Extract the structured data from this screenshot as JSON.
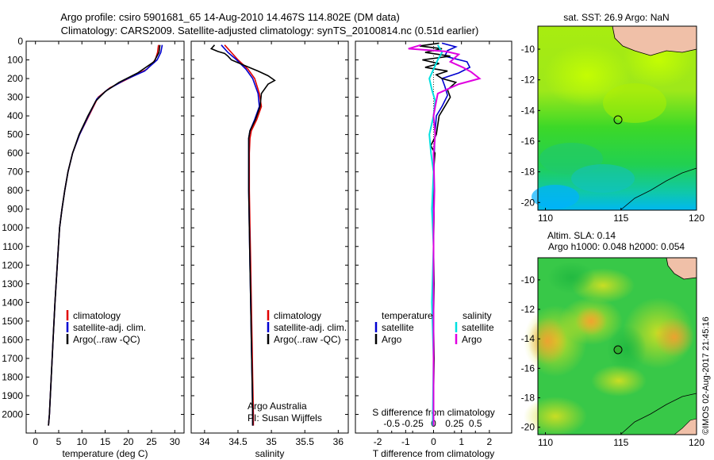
{
  "title": {
    "line1": "Argo profile: csiro 5901681_65 14-Aug-2010 14.467S 114.802E (DM data)",
    "line2": "Climatology: CARS2009. Satellite-adjusted climatology: synTS_20100814.nc (0.51d earlier)"
  },
  "colors": {
    "climatology": "#e00000",
    "satellite": "#0000d0",
    "argo": "#000000",
    "sat_salinity": "#00e0e0",
    "argo_salinity": "#e000e0"
  },
  "chart_data": [
    {
      "type": "line",
      "id": "temperature",
      "xlabel": "temperature (deg C)",
      "ylabel": "",
      "xlim": [
        -2,
        32
      ],
      "ylim": [
        2100,
        0
      ],
      "xticks": [
        "0",
        "5",
        "10",
        "15",
        "20",
        "25",
        "30"
      ],
      "xtick_values": [
        0,
        5,
        10,
        15,
        20,
        25,
        30
      ],
      "yticks": [
        "0",
        "100",
        "200",
        "300",
        "400",
        "500",
        "600",
        "700",
        "800",
        "900",
        "1000",
        "1100",
        "1200",
        "1300",
        "1400",
        "1500",
        "1600",
        "1700",
        "1800",
        "1900",
        "2000"
      ],
      "ytick_values": [
        0,
        100,
        200,
        300,
        400,
        500,
        600,
        700,
        800,
        900,
        1000,
        1100,
        1200,
        1300,
        1400,
        1500,
        1600,
        1700,
        1800,
        1900,
        2000
      ],
      "legend": [
        "climatology",
        "satellite-adj. clim.",
        "Argo(..raw -QC)"
      ],
      "series": [
        {
          "name": "climatology",
          "color_key": "climatology",
          "points": [
            [
              26.5,
              20
            ],
            [
              26.3,
              60
            ],
            [
              25.8,
              100
            ],
            [
              24,
              150
            ],
            [
              20,
              200
            ],
            [
              16,
              250
            ],
            [
              13.5,
              300
            ],
            [
              11.5,
              400
            ],
            [
              9.5,
              500
            ],
            [
              8,
              600
            ],
            [
              7,
              700
            ],
            [
              6.3,
              800
            ],
            [
              5.7,
              900
            ],
            [
              5.2,
              1000
            ],
            [
              4.7,
              1200
            ],
            [
              4.2,
              1400
            ],
            [
              3.8,
              1600
            ],
            [
              3.4,
              1800
            ],
            [
              3,
              2000
            ],
            [
              2.8,
              2060
            ]
          ]
        },
        {
          "name": "satellite-adj. clim.",
          "color_key": "satellite",
          "points": [
            [
              27.3,
              20
            ],
            [
              27,
              60
            ],
            [
              26.2,
              100
            ],
            [
              23.5,
              160
            ],
            [
              19,
              210
            ],
            [
              15.5,
              260
            ],
            [
              13.2,
              310
            ],
            [
              11.4,
              400
            ],
            [
              9.5,
              500
            ],
            [
              8,
              600
            ],
            [
              7,
              700
            ],
            [
              6.3,
              800
            ],
            [
              5.7,
              900
            ],
            [
              5.2,
              1000
            ],
            [
              4.7,
              1200
            ],
            [
              4.2,
              1400
            ],
            [
              3.8,
              1600
            ],
            [
              3.4,
              1800
            ],
            [
              3,
              2000
            ],
            [
              2.8,
              2060
            ]
          ]
        },
        {
          "name": "Argo(..raw -QC)",
          "color_key": "argo",
          "points": [
            [
              26.8,
              20
            ],
            [
              26.6,
              60
            ],
            [
              25.5,
              110
            ],
            [
              22,
              170
            ],
            [
              18,
              220
            ],
            [
              15,
              270
            ],
            [
              13,
              320
            ],
            [
              11.3,
              400
            ],
            [
              9.4,
              500
            ],
            [
              8,
              600
            ],
            [
              7,
              700
            ],
            [
              6.3,
              800
            ],
            [
              5.7,
              900
            ],
            [
              5.2,
              1000
            ],
            [
              4.7,
              1200
            ],
            [
              4.2,
              1400
            ],
            [
              3.8,
              1600
            ],
            [
              3.4,
              1800
            ],
            [
              3,
              2000
            ],
            [
              2.8,
              2060
            ]
          ]
        }
      ]
    },
    {
      "type": "line",
      "id": "salinity",
      "xlabel": "salinity",
      "xlim": [
        33.8,
        36.15
      ],
      "ylim": [
        2100,
        0
      ],
      "xticks": [
        "34",
        "34.5",
        "35",
        "35.5",
        "36"
      ],
      "xtick_values": [
        34,
        34.5,
        35,
        35.5,
        36
      ],
      "legend": [
        "climatology",
        "satellite-adj. clim.",
        "Argo(..raw -QC)"
      ],
      "annotations": [
        "Argo Australia",
        "PI: Susan Wijffels"
      ],
      "series": [
        {
          "name": "climatology",
          "color_key": "climatology",
          "points": [
            [
              34.3,
              20
            ],
            [
              34.4,
              60
            ],
            [
              34.5,
              100
            ],
            [
              34.65,
              150
            ],
            [
              34.75,
              200
            ],
            [
              34.82,
              280
            ],
            [
              34.85,
              350
            ],
            [
              34.78,
              420
            ],
            [
              34.7,
              480
            ],
            [
              34.68,
              520
            ],
            [
              34.67,
              600
            ],
            [
              34.67,
              800
            ],
            [
              34.68,
              1000
            ],
            [
              34.69,
              1200
            ],
            [
              34.7,
              1400
            ],
            [
              34.71,
              1600
            ],
            [
              34.72,
              1800
            ],
            [
              34.73,
              2000
            ],
            [
              34.73,
              2060
            ]
          ]
        },
        {
          "name": "satellite-adj. clim.",
          "color_key": "satellite",
          "points": [
            [
              34.25,
              20
            ],
            [
              34.35,
              60
            ],
            [
              34.48,
              100
            ],
            [
              34.62,
              150
            ],
            [
              34.72,
              200
            ],
            [
              34.8,
              280
            ],
            [
              34.82,
              350
            ],
            [
              34.75,
              420
            ],
            [
              34.68,
              480
            ],
            [
              34.66,
              520
            ],
            [
              34.66,
              600
            ],
            [
              34.66,
              800
            ],
            [
              34.67,
              1000
            ],
            [
              34.68,
              1200
            ],
            [
              34.69,
              1400
            ],
            [
              34.7,
              1600
            ],
            [
              34.71,
              1800
            ],
            [
              34.72,
              2000
            ],
            [
              34.72,
              2060
            ]
          ]
        },
        {
          "name": "Argo(..raw -QC)",
          "color_key": "argo",
          "points": [
            [
              34.15,
              20
            ],
            [
              34.1,
              40
            ],
            [
              34.2,
              55
            ],
            [
              34.3,
              65
            ],
            [
              34.35,
              80
            ],
            [
              34.4,
              100
            ],
            [
              34.6,
              130
            ],
            [
              34.8,
              160
            ],
            [
              34.95,
              185
            ],
            [
              35.05,
              210
            ],
            [
              34.95,
              230
            ],
            [
              34.85,
              280
            ],
            [
              34.83,
              350
            ],
            [
              34.76,
              420
            ],
            [
              34.68,
              480
            ],
            [
              34.66,
              520
            ],
            [
              34.66,
              600
            ],
            [
              34.66,
              800
            ],
            [
              34.67,
              1000
            ],
            [
              34.68,
              1200
            ],
            [
              34.69,
              1400
            ],
            [
              34.7,
              1600
            ],
            [
              34.71,
              1800
            ],
            [
              34.72,
              2000
            ],
            [
              34.72,
              2060
            ]
          ]
        }
      ]
    },
    {
      "type": "line",
      "id": "difference",
      "xlabel": "T difference from climatology",
      "xlabel_top": "S difference from climatology",
      "xlim": [
        -2.8,
        2.8
      ],
      "ylim": [
        2100,
        0
      ],
      "xticks": [
        "-2",
        "-1",
        "0",
        "1",
        "2"
      ],
      "xtick_values": [
        -2,
        -1,
        0,
        1,
        2
      ],
      "sticks": [
        "-0.5",
        "-0.25",
        "0",
        "0.25",
        "0.5"
      ],
      "stick_values": [
        -0.5,
        -0.25,
        0,
        0.25,
        0.5
      ],
      "legend_temperature_title": "temperature",
      "legend_salinity_title": "salinity",
      "legend_temperature": [
        "satellite",
        "Argo"
      ],
      "legend_salinity": [
        "satellite",
        "Argo"
      ],
      "series": [
        {
          "name": "T satellite",
          "color_key": "satellite",
          "points": [
            [
              0.3,
              10
            ],
            [
              0.8,
              30
            ],
            [
              0.5,
              50
            ],
            [
              0.4,
              80
            ],
            [
              1.2,
              110
            ],
            [
              1.3,
              140
            ],
            [
              0.9,
              170
            ],
            [
              0.3,
              200
            ],
            [
              0.4,
              240
            ],
            [
              0.5,
              290
            ],
            [
              0.3,
              350
            ],
            [
              0.1,
              400
            ],
            [
              0.05,
              500
            ],
            [
              0,
              700
            ],
            [
              0,
              1000
            ],
            [
              0,
              1500
            ],
            [
              0,
              2060
            ]
          ]
        },
        {
          "name": "T Argo",
          "color_key": "argo",
          "points": [
            [
              0.2,
              10
            ],
            [
              -0.5,
              25
            ],
            [
              0.3,
              40
            ],
            [
              -0.3,
              60
            ],
            [
              0.6,
              80
            ],
            [
              -0.4,
              100
            ],
            [
              0.2,
              120
            ],
            [
              -0.3,
              140
            ],
            [
              0.5,
              160
            ],
            [
              0.1,
              180
            ],
            [
              0.3,
              200
            ],
            [
              0.8,
              220
            ],
            [
              0.5,
              260
            ],
            [
              0.6,
              300
            ],
            [
              0.4,
              350
            ],
            [
              0.2,
              400
            ],
            [
              0.1,
              500
            ],
            [
              -0.1,
              560
            ],
            [
              0.05,
              600
            ],
            [
              0,
              700
            ],
            [
              0.02,
              900
            ],
            [
              0,
              1100
            ],
            [
              0.02,
              1300
            ],
            [
              0,
              1500
            ],
            [
              0.02,
              1700
            ],
            [
              0,
              1900
            ],
            [
              0,
              2060
            ]
          ]
        },
        {
          "name": "S satellite",
          "color_key": "sat_salinity",
          "points": [
            [
              0.05,
              20
            ],
            [
              0.1,
              60
            ],
            [
              0.05,
              100
            ],
            [
              0,
              150
            ],
            [
              -0.05,
              200
            ],
            [
              -0.02,
              260
            ],
            [
              0.02,
              320
            ],
            [
              0,
              400
            ],
            [
              -0.05,
              500
            ],
            [
              -0.03,
              600
            ],
            [
              0,
              700
            ],
            [
              -0.02,
              900
            ],
            [
              0,
              1100
            ],
            [
              -0.02,
              1400
            ],
            [
              0,
              1700
            ],
            [
              -0.01,
              2060
            ]
          ]
        },
        {
          "name": "S Argo",
          "color_key": "argo_salinity",
          "points": [
            [
              -0.15,
              20
            ],
            [
              -0.3,
              40
            ],
            [
              0.15,
              55
            ],
            [
              0.3,
              70
            ],
            [
              0.25,
              90
            ],
            [
              0.2,
              110
            ],
            [
              0.35,
              140
            ],
            [
              0.45,
              165
            ],
            [
              0.55,
              200
            ],
            [
              0.3,
              230
            ],
            [
              0.05,
              280
            ],
            [
              0.02,
              350
            ],
            [
              0,
              400
            ],
            [
              0.02,
              500
            ],
            [
              0,
              600
            ],
            [
              0.01,
              800
            ],
            [
              0,
              1000
            ],
            [
              0,
              1400
            ],
            [
              0,
              1800
            ],
            [
              0,
              2060
            ]
          ]
        }
      ]
    },
    {
      "type": "heatmap",
      "id": "sst_map",
      "title": "sat. SST: 26.9  Argo: NaN",
      "xlim": [
        109.5,
        120
      ],
      "ylim": [
        -20.5,
        -8.5
      ],
      "xticks": [
        "110",
        "115",
        "120"
      ],
      "xtick_values": [
        110,
        115,
        120
      ],
      "yticks": [
        "-10",
        "-12",
        "-14",
        "-16",
        "-18",
        "-20"
      ],
      "ytick_values": [
        -10,
        -12,
        -14,
        -16,
        -18,
        -20
      ],
      "argo_position": [
        114.8,
        -14.47
      ]
    },
    {
      "type": "heatmap",
      "id": "sla_map",
      "title_line1": "Altim. SLA: 0.14",
      "title_line2": "Argo h1000: 0.048 h2000: 0.054",
      "xlim": [
        109.5,
        120
      ],
      "ylim": [
        -20.5,
        -8.5
      ],
      "xticks": [
        "110",
        "115",
        "120"
      ],
      "xtick_values": [
        110,
        115,
        120
      ],
      "yticks": [
        "-10",
        "-12",
        "-14",
        "-16",
        "-18",
        "-20"
      ],
      "ytick_values": [
        -10,
        -12,
        -14,
        -16,
        -18,
        -20
      ],
      "argo_position": [
        114.8,
        -14.47
      ]
    }
  ],
  "watermark": "©IMOS 02-Aug-2017 21:45:16"
}
